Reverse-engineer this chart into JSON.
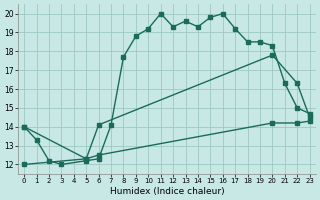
{
  "title": "",
  "xlabel": "Humidex (Indice chaleur)",
  "ylabel": "",
  "bg_color": "#c8e8e6",
  "grid_color": "#9dc8c4",
  "line_color": "#1a6b5a",
  "xlim": [
    -0.5,
    23.5
  ],
  "ylim": [
    11.5,
    20.5
  ],
  "xticks": [
    0,
    1,
    2,
    3,
    4,
    5,
    6,
    7,
    8,
    9,
    10,
    11,
    12,
    13,
    14,
    15,
    16,
    17,
    18,
    19,
    20,
    21,
    22,
    23
  ],
  "yticks": [
    12,
    13,
    14,
    15,
    16,
    17,
    18,
    19,
    20
  ],
  "curve1_x": [
    0,
    1,
    2,
    3,
    5,
    6,
    7,
    8,
    9,
    10,
    11,
    12,
    13,
    14,
    15,
    16,
    17,
    18,
    19,
    20,
    21,
    22,
    23
  ],
  "curve1_y": [
    14.0,
    13.3,
    12.2,
    12.0,
    12.2,
    12.3,
    14.1,
    17.7,
    18.8,
    19.2,
    20.0,
    19.3,
    19.6,
    19.3,
    19.8,
    20.0,
    19.2,
    18.5,
    18.5,
    18.3,
    16.3,
    15.0,
    14.7
  ],
  "curve2_x": [
    0,
    5,
    6,
    20,
    22,
    23
  ],
  "curve2_y": [
    14.0,
    12.3,
    14.1,
    17.8,
    16.3,
    14.5
  ],
  "curve3_x": [
    0,
    5,
    6,
    20,
    22,
    23
  ],
  "curve3_y": [
    12.0,
    12.3,
    12.5,
    14.2,
    14.2,
    14.3
  ],
  "marker_size": 2.5,
  "line_width": 1.0
}
